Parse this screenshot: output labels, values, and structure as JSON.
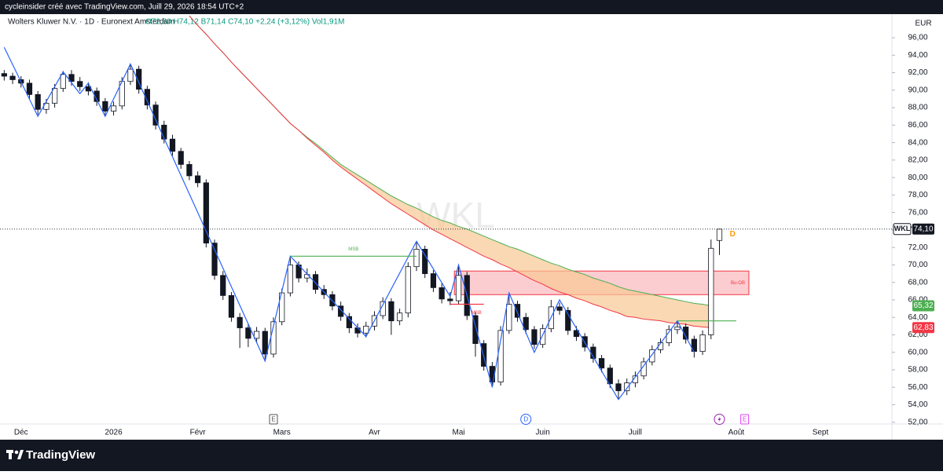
{
  "header": {
    "credit": "cycleinsider créé avec TradingView.com, Juill 29, 2026 18:54 UTC+2",
    "symbol": "Wolters Kluwer N.V. · 1D · Euronext Amsterdam",
    "ohlc": "O72,80 H74,12 B71,14 C74,10 +2,24 (+3,12%) Vol1,91M",
    "currency": "EUR"
  },
  "footer": {
    "brand": "TradingView"
  },
  "chart_data": {
    "type": "candlestick",
    "watermark": "WKL",
    "categories": [
      null,
      null,
      "Déc",
      null,
      null,
      null,
      null,
      null,
      null,
      null,
      null,
      null,
      null,
      "2026",
      null,
      null,
      null,
      null,
      null,
      null,
      null,
      null,
      null,
      "Févr",
      null,
      null,
      null,
      null,
      null,
      null,
      null,
      null,
      null,
      "Mars",
      null,
      null,
      null,
      null,
      null,
      null,
      null,
      null,
      null,
      null,
      "Avr",
      null,
      null,
      null,
      null,
      null,
      null,
      null,
      null,
      null,
      "Mai",
      null,
      null,
      null,
      null,
      null,
      null,
      null,
      null,
      null,
      "Juin",
      null,
      null,
      null,
      null,
      null,
      null,
      null,
      null,
      null,
      null,
      "Juill",
      null,
      null,
      null,
      null,
      null,
      null,
      null,
      null,
      null,
      null,
      null,
      "Août",
      null,
      null,
      null,
      null,
      null,
      null,
      null,
      null,
      null,
      "Sept",
      null,
      null,
      null,
      null,
      null,
      null,
      null,
      null
    ],
    "open": [
      91.9,
      91.6,
      91.2,
      90.8,
      89.5,
      87.8,
      88.5,
      90.2,
      91.8,
      91.0,
      90.4,
      89.9,
      88.7,
      87.6,
      88.2,
      91.0,
      92.4,
      90.1,
      88.3,
      86.0,
      84.4,
      83.0,
      81.5,
      80.2,
      79.4,
      72.5,
      68.8,
      66.5,
      64.0,
      62.8,
      61.6,
      62.4,
      59.8,
      63.5,
      66.8,
      70.0,
      68.5,
      68.9,
      67.2,
      66.6,
      65.3,
      64.1,
      62.8,
      62.2,
      63.0,
      64.2,
      65.8,
      63.6,
      64.5,
      69.8,
      71.8,
      69.0,
      67.4,
      66.1,
      65.9,
      68.8,
      64.2,
      61.0,
      58.4,
      56.6,
      62.5,
      65.5,
      64.0,
      62.6,
      60.9,
      62.7,
      65.2,
      64.8,
      62.5,
      61.8,
      60.6,
      59.3,
      58.2,
      56.4,
      55.6,
      56.5,
      57.3,
      58.9,
      60.3,
      61.1,
      62.6,
      62.9,
      61.5,
      60.1,
      62.0,
      72.8,
      null,
      null,
      null,
      null,
      null,
      null,
      null,
      null,
      null,
      null,
      null,
      null,
      null,
      null,
      null,
      null,
      null,
      null,
      null,
      null
    ],
    "high": [
      92.3,
      92.0,
      91.6,
      91.2,
      89.9,
      89.0,
      90.7,
      92.2,
      92.3,
      91.5,
      90.9,
      90.3,
      89.1,
      88.7,
      91.5,
      93.0,
      92.8,
      90.5,
      88.7,
      86.5,
      84.9,
      83.4,
      81.9,
      80.7,
      79.8,
      72.9,
      69.3,
      66.9,
      64.5,
      63.3,
      62.9,
      62.8,
      64.0,
      67.3,
      71.0,
      70.4,
      69.6,
      69.3,
      67.7,
      67.0,
      65.8,
      64.5,
      63.3,
      63.5,
      64.7,
      66.3,
      66.2,
      65.0,
      70.3,
      72.6,
      72.2,
      69.4,
      67.9,
      66.9,
      69.9,
      69.2,
      64.6,
      61.4,
      58.9,
      63.0,
      66.6,
      65.9,
      64.5,
      63.0,
      63.2,
      66.0,
      65.7,
      65.2,
      63.0,
      62.2,
      61.0,
      59.7,
      58.6,
      56.9,
      57.0,
      57.8,
      59.4,
      60.8,
      61.6,
      63.1,
      63.6,
      63.3,
      61.9,
      62.5,
      72.9,
      74.12,
      null,
      null,
      null,
      null,
      null,
      null,
      null,
      null,
      null,
      null,
      null,
      null,
      null,
      null,
      null,
      null,
      null,
      null,
      null,
      null
    ],
    "low": [
      91.1,
      90.7,
      90.3,
      89.0,
      87.2,
      87.3,
      88.0,
      89.8,
      90.5,
      89.9,
      89.4,
      88.2,
      87.1,
      87.1,
      87.8,
      90.6,
      89.6,
      87.8,
      85.5,
      83.9,
      82.5,
      81.0,
      79.7,
      78.9,
      72.0,
      68.3,
      66.0,
      63.5,
      60.5,
      60.6,
      61.1,
      59.1,
      59.4,
      63.1,
      66.4,
      68.0,
      68.0,
      66.7,
      66.1,
      64.8,
      63.6,
      62.2,
      61.7,
      61.7,
      62.5,
      63.8,
      62.0,
      63.1,
      64.0,
      69.3,
      68.5,
      66.9,
      65.6,
      65.4,
      65.5,
      63.7,
      59.5,
      57.9,
      56.0,
      56.2,
      62.1,
      63.5,
      62.1,
      60.4,
      60.5,
      62.3,
      64.3,
      62.0,
      61.3,
      60.1,
      58.8,
      57.7,
      55.9,
      54.6,
      55.1,
      56.0,
      56.9,
      58.5,
      59.9,
      60.7,
      62.1,
      61.0,
      59.4,
      59.7,
      61.5,
      71.14,
      null,
      null,
      null,
      null,
      null,
      null,
      null,
      null,
      null,
      null,
      null,
      null,
      null,
      null,
      null,
      null,
      null,
      null,
      null,
      null
    ],
    "close": [
      91.6,
      91.2,
      90.8,
      89.5,
      87.8,
      88.5,
      90.2,
      91.8,
      91.0,
      90.4,
      89.9,
      88.7,
      87.6,
      88.2,
      91.0,
      92.4,
      90.1,
      88.3,
      86.0,
      84.4,
      83.0,
      81.5,
      80.2,
      79.4,
      72.5,
      68.8,
      66.5,
      64.0,
      62.8,
      61.6,
      62.4,
      59.8,
      63.5,
      66.8,
      70.0,
      68.5,
      68.9,
      67.2,
      66.6,
      65.3,
      64.1,
      62.8,
      62.2,
      63.0,
      64.2,
      65.8,
      63.6,
      64.5,
      69.8,
      71.8,
      69.0,
      67.4,
      66.1,
      65.9,
      68.8,
      64.2,
      61.0,
      58.4,
      56.6,
      62.5,
      65.5,
      64.0,
      62.6,
      60.9,
      62.7,
      65.2,
      64.8,
      62.5,
      61.8,
      60.6,
      59.3,
      58.2,
      56.4,
      55.6,
      56.5,
      57.3,
      58.9,
      60.3,
      61.1,
      62.6,
      62.9,
      61.5,
      60.1,
      62.0,
      71.9,
      74.1,
      null,
      null,
      null,
      null,
      null,
      null,
      null,
      null,
      null,
      null,
      null,
      null,
      null,
      null,
      null,
      null,
      null,
      null,
      null,
      null
    ],
    "series": [
      {
        "color": "#4caf50",
        "values": [
          null,
          null,
          null,
          null,
          null,
          null,
          null,
          null,
          null,
          null,
          null,
          null,
          null,
          null,
          null,
          null,
          null,
          null,
          null,
          null,
          null,
          null,
          98.5,
          97.4,
          96.4,
          95.3,
          94.3,
          93.2,
          92.2,
          91.2,
          90.2,
          89.2,
          88.2,
          87.2,
          86.2,
          85.4,
          84.6,
          83.9,
          83.1,
          82.3,
          81.5,
          80.9,
          80.3,
          79.7,
          79.1,
          78.5,
          77.9,
          77.4,
          76.9,
          76.5,
          76.0,
          75.5,
          75.1,
          74.8,
          74.4,
          74.1,
          73.7,
          73.3,
          72.9,
          72.5,
          72.1,
          71.8,
          71.4,
          71.0,
          70.6,
          70.2,
          69.9,
          69.5,
          69.2,
          68.9,
          68.5,
          68.2,
          67.9,
          67.5,
          67.2,
          67.0,
          66.8,
          66.6,
          66.4,
          66.2,
          66.0,
          65.8,
          65.6,
          65.5,
          65.32,
          null,
          null,
          null,
          null,
          null,
          null,
          null,
          null,
          null,
          null,
          null,
          null,
          null,
          null,
          null,
          null,
          null,
          null,
          null,
          null,
          null
        ]
      },
      {
        "color": "#f23645",
        "values": [
          null,
          null,
          null,
          null,
          null,
          null,
          null,
          null,
          null,
          null,
          null,
          null,
          null,
          null,
          null,
          null,
          null,
          null,
          null,
          null,
          null,
          null,
          98.5,
          97.4,
          96.4,
          95.3,
          94.3,
          93.2,
          92.2,
          91.2,
          90.2,
          89.2,
          88.2,
          87.2,
          86.2,
          85.4,
          84.5,
          83.7,
          82.9,
          82.0,
          81.2,
          80.5,
          79.8,
          79.1,
          78.4,
          77.7,
          77.0,
          76.4,
          75.8,
          75.2,
          74.6,
          74.0,
          73.5,
          73.0,
          72.5,
          72.0,
          71.5,
          71.0,
          70.6,
          70.1,
          69.7,
          69.2,
          68.7,
          68.2,
          67.8,
          67.3,
          66.9,
          66.6,
          66.2,
          65.9,
          65.5,
          65.2,
          64.8,
          64.5,
          64.1,
          64.0,
          63.8,
          63.7,
          63.6,
          63.4,
          63.3,
          63.2,
          63.0,
          62.9,
          62.83,
          null,
          null,
          null,
          null,
          null,
          null,
          null,
          null,
          null,
          null,
          null,
          null,
          null,
          null,
          null,
          null,
          null,
          null,
          null,
          null,
          null
        ]
      }
    ],
    "cloud_color": "#f9c794",
    "zigzag": {
      "color": "#2962ff",
      "x": [
        0,
        4,
        7,
        9,
        10,
        12,
        15,
        31,
        34,
        43,
        49,
        53,
        54,
        58,
        60,
        63,
        66,
        73,
        80,
        82
      ],
      "values": [
        94.9,
        87.0,
        92.1,
        89.6,
        90.8,
        87.0,
        93.0,
        59.0,
        71.0,
        61.8,
        72.7,
        66.4,
        70.0,
        56.0,
        66.8,
        60.0,
        66.0,
        54.6,
        63.6,
        60.0
      ]
    },
    "levels": [
      {
        "label": "MSB",
        "value": 71.0,
        "from": 34,
        "to": 49,
        "color": "#4caf50"
      },
      {
        "label": "MSB",
        "value": 65.5,
        "from": 53,
        "to": 57,
        "color": "#f23645"
      },
      {
        "value": 63.6,
        "from": 80,
        "to": 87,
        "color": "#4caf50"
      }
    ],
    "zones": [
      {
        "label": "Bu-OB",
        "top": 69.3,
        "bottom": 66.6,
        "from": 54,
        "to": 88,
        "color": "#f23645"
      }
    ],
    "signal": {
      "label": "D",
      "value": 73.5,
      "at": 86,
      "color": "#ff9800"
    },
    "last_price": {
      "name": "WKL",
      "value": 74.1,
      "label": "74,10"
    },
    "price_labels": [
      {
        "value": 65.32,
        "label": "65,32",
        "color": "#4caf50"
      },
      {
        "value": 62.83,
        "label": "62,83",
        "color": "#f23645"
      }
    ],
    "events": [
      {
        "label": "E",
        "at": 32,
        "color": "#555555"
      },
      {
        "label": "D",
        "at": 62,
        "color": "#2962ff"
      },
      {
        "at": 85,
        "color": "#9c27b0"
      },
      {
        "label": "E",
        "at": 88,
        "color": "#e040fb"
      }
    ],
    "ylim": [
      51.8,
      98.7
    ],
    "yticks": [
      {
        "value": 52,
        "label": "52,00"
      },
      {
        "value": 54,
        "label": "54,00"
      },
      {
        "value": 56,
        "label": "56,00"
      },
      {
        "value": 58,
        "label": "58,00"
      },
      {
        "value": 60,
        "label": "60,00"
      },
      {
        "value": 62,
        "label": "62,00"
      },
      {
        "value": 64,
        "label": "64,00"
      },
      {
        "value": 66,
        "label": "66,00"
      },
      {
        "value": 68,
        "label": "68,00"
      },
      {
        "value": 70,
        "label": "70,00"
      },
      {
        "value": 72,
        "label": "72,00"
      },
      {
        "value": 74,
        "label": "74,00"
      },
      {
        "value": 76,
        "label": "76,00"
      },
      {
        "value": 78,
        "label": "78,00"
      },
      {
        "value": 80,
        "label": "80,00"
      },
      {
        "value": 82,
        "label": "82,00"
      },
      {
        "value": 84,
        "label": "84,00"
      },
      {
        "value": 86,
        "label": "86,00"
      },
      {
        "value": 88,
        "label": "88,00"
      },
      {
        "value": 90,
        "label": "90,00"
      },
      {
        "value": 92,
        "label": "92,00"
      },
      {
        "value": 94,
        "label": "94,00"
      },
      {
        "value": 96,
        "label": "96,00"
      }
    ],
    "grid": false
  }
}
